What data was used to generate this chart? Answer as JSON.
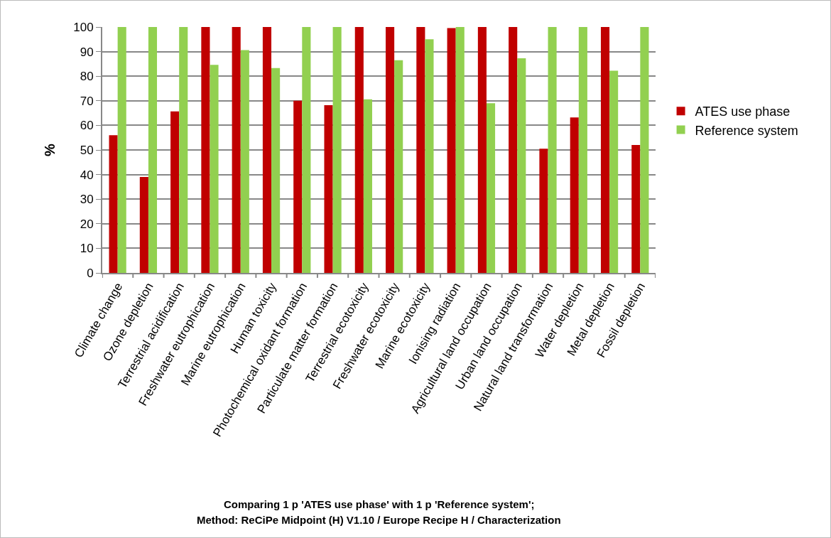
{
  "chart_data": {
    "type": "bar",
    "ylabel": "%",
    "categories": [
      "Climate change",
      "Ozone depletion",
      "Terrestrial acidification",
      "Freshwater eutrophication",
      "Marine eutrophication",
      "Human toxicity",
      "Photochemical oxidant formation",
      "Particulate matter formation",
      "Terrestrial ecotoxicity",
      "Freshwater ecotoxicity",
      "Marine ecotoxicity",
      "Ionising radiation",
      "Agricultural land occupation",
      "Urban land occupation",
      "Natural land transformation",
      "Water depletion",
      "Metal depletion",
      "Fossil depletion"
    ],
    "series": [
      {
        "name": "ATES use phase",
        "color": "#c00000",
        "values": [
          56,
          39,
          65.7,
          100,
          100,
          100,
          70,
          68.2,
          100,
          100,
          100,
          99.6,
          100,
          100,
          50.5,
          63.2,
          100,
          52
        ]
      },
      {
        "name": "Reference system",
        "color": "#92d050",
        "values": [
          100,
          100,
          100,
          84.6,
          90.6,
          83.3,
          100,
          100,
          70.6,
          86.5,
          95,
          100,
          69,
          87.3,
          100,
          100,
          82.2,
          100
        ]
      }
    ],
    "ylim": [
      0,
      100
    ],
    "yticks": [
      0,
      10,
      20,
      30,
      40,
      50,
      60,
      70,
      80,
      90,
      100
    ],
    "grid": "y",
    "legend": "right",
    "annotations": [
      "Comparing 1 p 'ATES use phase' with 1 p 'Reference system';",
      "Method: ReCiPe Midpoint (H) V1.10 / Europe Recipe H / Characterization"
    ]
  }
}
